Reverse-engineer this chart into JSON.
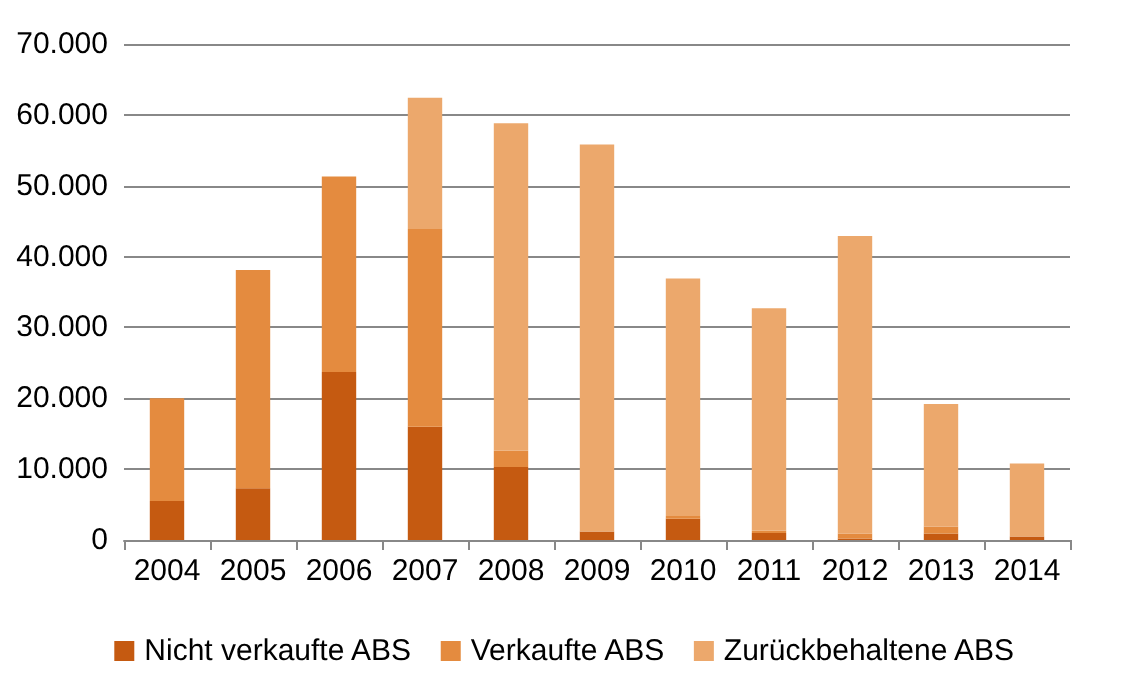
{
  "chart_data": {
    "type": "bar",
    "stacked": true,
    "categories": [
      "2004",
      "2005",
      "2006",
      "2007",
      "2008",
      "2009",
      "2010",
      "2011",
      "2012",
      "2013",
      "2014"
    ],
    "series": [
      {
        "name": "Nicht verkaufte ABS",
        "color": "#c55a11",
        "values": [
          5500,
          7300,
          23700,
          16000,
          10300,
          1200,
          3000,
          1000,
          200,
          900,
          500
        ]
      },
      {
        "name": "Verkaufte ABS",
        "color": "#e48b3f",
        "values": [
          14500,
          30800,
          27600,
          27900,
          2300,
          0,
          400,
          300,
          700,
          1000,
          0
        ]
      },
      {
        "name": "Zurückbehaltene ABS",
        "color": "#eca86c",
        "values": [
          0,
          0,
          0,
          18500,
          46200,
          54600,
          33500,
          31400,
          42000,
          17300,
          10300
        ]
      }
    ],
    "ylim": [
      0,
      70000
    ],
    "yticks": [
      {
        "value": 0,
        "label": "0"
      },
      {
        "value": 10000,
        "label": "10.000"
      },
      {
        "value": 20000,
        "label": "20.000"
      },
      {
        "value": 30000,
        "label": "30.000"
      },
      {
        "value": 40000,
        "label": "40.000"
      },
      {
        "value": 50000,
        "label": "50.000"
      },
      {
        "value": 60000,
        "label": "60.000"
      },
      {
        "value": 70000,
        "label": "70.000"
      }
    ],
    "grid": "y",
    "legend": "bottom"
  }
}
